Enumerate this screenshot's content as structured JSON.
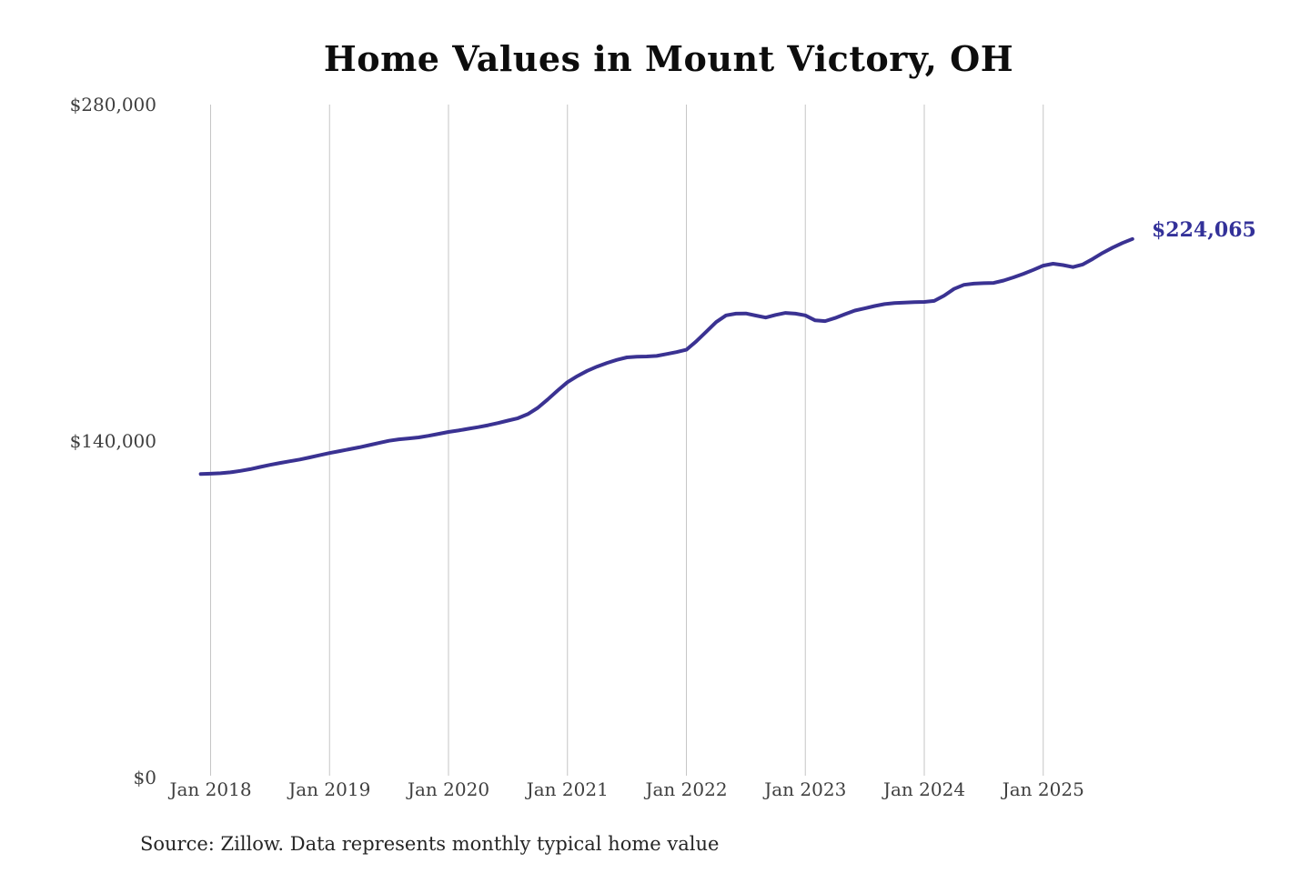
{
  "title": "Home Values in Mount Victory, OH",
  "source_note": "Source: Zillow. Data represents monthly typical home value",
  "end_label": "$224,065",
  "colors": {
    "line": "#3a3292",
    "end_label": "#333199",
    "grid": "#c6c6c6",
    "axis_text": "#3f3f3f",
    "title_text": "#0d0d0d",
    "source_text": "#262626",
    "background": "#ffffff"
  },
  "chart_data": {
    "type": "line",
    "title": "Home Values in Mount Victory, OH",
    "xlabel": "",
    "ylabel": "",
    "ylim": [
      0,
      280000
    ],
    "y_ticks": [
      0,
      140000,
      280000
    ],
    "y_tick_labels": [
      "$0",
      "$140,000",
      "$280,000"
    ],
    "x_tick_labels": [
      "Jan 2018",
      "Jan 2019",
      "Jan 2020",
      "Jan 2021",
      "Jan 2022",
      "Jan 2023",
      "Jan 2024",
      "Jan 2025"
    ],
    "grid": "vertical-only",
    "legend": "none",
    "frequency": "monthly",
    "start_month": "2017-12",
    "end_month": "2025-10",
    "final_value": 224065,
    "final_value_label": "$224,065",
    "series": [
      {
        "name": "Typical home value",
        "values": [
          126300,
          126400,
          126600,
          127000,
          127600,
          128300,
          129200,
          130100,
          130900,
          131600,
          132300,
          133200,
          134100,
          135000,
          135800,
          136600,
          137400,
          138300,
          139200,
          140100,
          140700,
          141100,
          141500,
          142200,
          143000,
          143800,
          144400,
          145100,
          145800,
          146600,
          147500,
          148500,
          149500,
          151200,
          153800,
          157300,
          161000,
          164500,
          167000,
          169200,
          171000,
          172500,
          173800,
          174800,
          175100,
          175200,
          175400,
          176200,
          177000,
          178000,
          181500,
          185500,
          189500,
          192300,
          193000,
          193100,
          192200,
          191400,
          192500,
          193300,
          193000,
          192300,
          190200,
          189900,
          191200,
          192800,
          194300,
          195200,
          196200,
          197000,
          197400,
          197600,
          197800,
          197900,
          198300,
          200500,
          203300,
          205000,
          205500,
          205700,
          205800,
          206800,
          208100,
          209600,
          211200,
          213000,
          213800,
          213200,
          212400,
          213500,
          215800,
          218300,
          220500,
          222400,
          224065
        ]
      }
    ]
  }
}
